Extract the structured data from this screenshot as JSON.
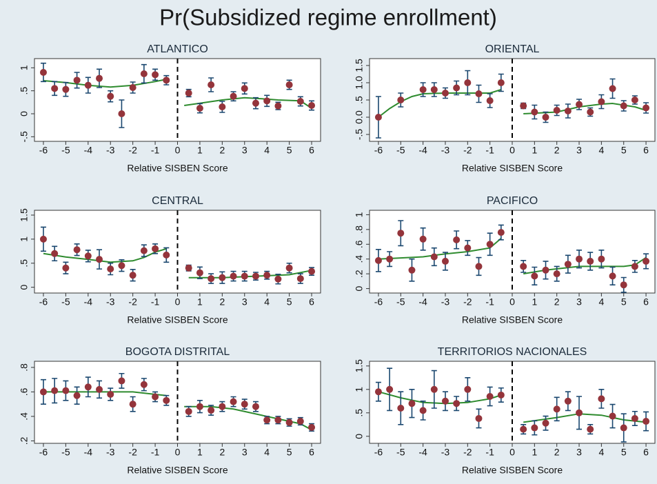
{
  "title": "Pr(Subsidized regime enrollment)",
  "chart_data": [
    {
      "type": "scatter",
      "title": "ATLANTICO",
      "x_label": "Relative SISBEN Score",
      "xlim": [
        -6.4,
        6.4
      ],
      "xticks": [
        -6,
        -5,
        -4,
        -3,
        -2,
        -1,
        0,
        1,
        2,
        3,
        4,
        5,
        6
      ],
      "ylim": [
        -0.6,
        1.2
      ],
      "yticks": [
        {
          "value": -0.5,
          "label": "-.5"
        },
        0,
        {
          "value": 0.5,
          "label": ".5"
        },
        1
      ],
      "cutoff": 0,
      "points": {
        "color": "#94343b",
        "error_color": "#1a476f",
        "x": [
          -6,
          -5.5,
          -5,
          -4.5,
          -4,
          -3.5,
          -3,
          -2.5,
          -2,
          -1.5,
          -1,
          -0.5,
          0.5,
          1,
          1.5,
          2,
          2.5,
          3,
          3.5,
          4,
          4.5,
          5,
          5.5,
          6
        ],
        "values": [
          0.9,
          0.55,
          0.53,
          0.73,
          0.62,
          0.77,
          0.38,
          0.0,
          0.57,
          0.87,
          0.85,
          0.73,
          0.45,
          0.12,
          0.63,
          0.15,
          0.38,
          0.55,
          0.23,
          0.28,
          0.17,
          0.63,
          0.27,
          0.18
        ],
        "errors": [
          0.2,
          0.15,
          0.15,
          0.17,
          0.17,
          0.2,
          0.12,
          0.3,
          0.12,
          0.2,
          0.12,
          0.1,
          0.08,
          0.1,
          0.15,
          0.12,
          0.1,
          0.12,
          0.12,
          0.12,
          0.08,
          0.1,
          0.1,
          0.1
        ]
      },
      "fit": {
        "color": "#2e8b2e",
        "x": [
          -6,
          -5,
          -4,
          -3,
          -2,
          -1,
          -0.5,
          0,
          0.3,
          1,
          2,
          3,
          4,
          4.5,
          5.5,
          6
        ],
        "values": [
          0.72,
          0.68,
          0.62,
          0.58,
          0.62,
          0.7,
          0.75,
          null,
          0.18,
          0.23,
          0.3,
          0.35,
          0.32,
          0.3,
          0.28,
          0.12
        ]
      }
    },
    {
      "type": "scatter",
      "title": "ORIENTAL",
      "x_label": "Relative SISBEN Score",
      "xlim": [
        -6.4,
        6.4
      ],
      "xticks": [
        -6,
        -5,
        -4,
        -3,
        -2,
        -1,
        0,
        1,
        2,
        3,
        4,
        5,
        6
      ],
      "ylim": [
        -0.7,
        1.7
      ],
      "yticks": [
        {
          "value": -0.5,
          "label": "-.5"
        },
        {
          "value": 0,
          "label": "0.0"
        },
        {
          "value": 0.5,
          "label": ".5"
        },
        {
          "value": 1,
          "label": "1.0"
        },
        1.5
      ],
      "cutoff": 0,
      "points": {
        "color": "#94343b",
        "error_color": "#1a476f",
        "x": [
          -6,
          -5,
          -4,
          -3.5,
          -3,
          -2.5,
          -2,
          -1.5,
          -1,
          -0.5,
          0.5,
          1,
          1.5,
          2,
          2.5,
          3,
          3.5,
          4,
          4.5,
          5,
          5.5,
          6
        ],
        "values": [
          0.0,
          0.5,
          0.8,
          0.8,
          0.7,
          0.85,
          1.0,
          0.68,
          0.48,
          1.0,
          0.33,
          0.15,
          0.0,
          0.2,
          0.18,
          0.37,
          0.15,
          0.45,
          0.83,
          0.33,
          0.5,
          0.27
        ],
        "errors": [
          0.6,
          0.2,
          0.2,
          0.2,
          0.15,
          0.2,
          0.35,
          0.25,
          0.2,
          0.25,
          0.08,
          0.2,
          0.15,
          0.15,
          0.2,
          0.15,
          0.12,
          0.2,
          0.28,
          0.15,
          0.12,
          0.15
        ]
      },
      "fit": {
        "color": "#2e8b2e",
        "x": [
          -6,
          -5.5,
          -5,
          -4.5,
          -4,
          -3,
          -2,
          -1,
          -0.5,
          0,
          0.5,
          2,
          3,
          4,
          4.5,
          5,
          5.5,
          6
        ],
        "values": [
          0.0,
          0.25,
          0.45,
          0.6,
          0.68,
          0.7,
          0.7,
          0.7,
          0.8,
          null,
          0.1,
          0.15,
          0.3,
          0.38,
          0.4,
          0.35,
          0.3,
          0.2
        ]
      }
    },
    {
      "type": "scatter",
      "title": "CENTRAL",
      "x_label": "Relative SISBEN Score",
      "xlim": [
        -6.4,
        6.4
      ],
      "xticks": [
        -6,
        -5,
        -4,
        -3,
        -2,
        -1,
        0,
        1,
        2,
        3,
        4,
        5,
        6
      ],
      "ylim": [
        -0.12,
        1.6
      ],
      "yticks": [
        0,
        {
          "value": 0.5,
          "label": ".5"
        },
        1,
        1.5
      ],
      "cutoff": 0,
      "points": {
        "color": "#94343b",
        "error_color": "#1a476f",
        "x": [
          -6,
          -5.5,
          -5,
          -4.5,
          -4,
          -3.5,
          -3,
          -2.5,
          -2,
          -1.5,
          -1,
          -0.5,
          0.5,
          1,
          1.5,
          2,
          2.5,
          3,
          3.5,
          4,
          4.5,
          5,
          5.5,
          6
        ],
        "values": [
          1.0,
          0.7,
          0.4,
          0.78,
          0.65,
          0.58,
          0.38,
          0.45,
          0.25,
          0.76,
          0.8,
          0.67,
          0.4,
          0.3,
          0.18,
          0.2,
          0.23,
          0.23,
          0.23,
          0.25,
          0.17,
          0.4,
          0.18,
          0.33
        ],
        "errors": [
          0.25,
          0.15,
          0.12,
          0.12,
          0.12,
          0.2,
          0.12,
          0.12,
          0.12,
          0.12,
          0.1,
          0.15,
          0.06,
          0.12,
          0.1,
          0.12,
          0.1,
          0.1,
          0.08,
          0.08,
          0.1,
          0.1,
          0.1,
          0.08
        ]
      },
      "fit": {
        "color": "#2e8b2e",
        "x": [
          -6,
          -5,
          -4,
          -3,
          -2,
          -1.5,
          -1,
          -0.5,
          0,
          0.5,
          2,
          4,
          5,
          6
        ],
        "values": [
          0.7,
          0.63,
          0.58,
          0.52,
          0.55,
          0.62,
          0.73,
          0.8,
          null,
          0.2,
          0.2,
          0.24,
          0.26,
          0.35
        ]
      }
    },
    {
      "type": "scatter",
      "title": "PACIFICO",
      "x_label": "Relative SISBEN Score",
      "xlim": [
        -6.4,
        6.4
      ],
      "xticks": [
        -6,
        -5,
        -4,
        -3,
        -2,
        -1,
        0,
        1,
        2,
        3,
        4,
        5,
        6
      ],
      "ylim": [
        -0.06,
        1.06
      ],
      "yticks": [
        0,
        {
          "value": 0.2,
          "label": ".2"
        },
        {
          "value": 0.4,
          "label": ".4"
        },
        {
          "value": 0.6,
          "label": ".6"
        },
        {
          "value": 0.8,
          "label": ".8"
        },
        1
      ],
      "cutoff": 0,
      "points": {
        "color": "#94343b",
        "error_color": "#1a476f",
        "x": [
          -6,
          -5.5,
          -5,
          -4.5,
          -4,
          -3.5,
          -3,
          -2.5,
          -2,
          -1.5,
          -1,
          -0.5,
          0.5,
          1,
          1.5,
          2,
          2.5,
          3,
          3.5,
          4,
          4.5,
          5,
          5.5,
          6
        ],
        "values": [
          0.38,
          0.4,
          0.75,
          0.25,
          0.67,
          0.43,
          0.37,
          0.66,
          0.55,
          0.3,
          0.6,
          0.76,
          0.3,
          0.17,
          0.25,
          0.2,
          0.33,
          0.4,
          0.37,
          0.4,
          0.17,
          0.05,
          0.3,
          0.37
        ],
        "errors": [
          0.15,
          0.1,
          0.17,
          0.15,
          0.15,
          0.12,
          0.12,
          0.12,
          0.1,
          0.12,
          0.15,
          0.1,
          0.08,
          0.12,
          0.12,
          0.1,
          0.12,
          0.12,
          0.12,
          0.12,
          0.12,
          0.1,
          0.08,
          0.1
        ]
      },
      "fit": {
        "color": "#2e8b2e",
        "x": [
          -6,
          -4,
          -3,
          -2,
          -1,
          -0.5,
          0,
          0.5,
          1.5,
          3,
          5,
          5.5,
          6
        ],
        "values": [
          0.4,
          0.43,
          0.47,
          0.5,
          0.55,
          0.68,
          null,
          0.2,
          0.25,
          0.3,
          0.3,
          0.32,
          0.42
        ]
      }
    },
    {
      "type": "scatter",
      "title": "BOGOTA DISTRITAL",
      "x_label": "Relative SISBEN Score",
      "xlim": [
        -6.4,
        6.4
      ],
      "xticks": [
        -6,
        -5,
        -4,
        -3,
        -2,
        -1,
        0,
        1,
        2,
        3,
        4,
        5,
        6
      ],
      "ylim": [
        0.18,
        0.85
      ],
      "yticks": [
        {
          "value": 0.2,
          "label": ".2"
        },
        {
          "value": 0.4,
          "label": ".4"
        },
        {
          "value": 0.6,
          "label": ".6"
        },
        {
          "value": 0.8,
          "label": ".8"
        }
      ],
      "cutoff": 0,
      "points": {
        "color": "#94343b",
        "error_color": "#1a476f",
        "x": [
          -6,
          -5.5,
          -5,
          -4.5,
          -4,
          -3.5,
          -3,
          -2.5,
          -2,
          -1.5,
          -1,
          -0.5,
          0.5,
          1,
          1.5,
          2,
          2.5,
          3,
          3.5,
          4,
          4.5,
          5,
          5.5,
          6
        ],
        "values": [
          0.6,
          0.61,
          0.61,
          0.57,
          0.64,
          0.62,
          0.58,
          0.69,
          0.5,
          0.66,
          0.56,
          0.53,
          0.44,
          0.48,
          0.45,
          0.48,
          0.52,
          0.5,
          0.48,
          0.37,
          0.37,
          0.35,
          0.36,
          0.31
        ],
        "errors": [
          0.1,
          0.1,
          0.08,
          0.07,
          0.08,
          0.07,
          0.05,
          0.06,
          0.06,
          0.05,
          0.04,
          0.04,
          0.04,
          0.05,
          0.04,
          0.04,
          0.04,
          0.04,
          0.04,
          0.03,
          0.03,
          0.03,
          0.03,
          0.03
        ]
      },
      "fit": {
        "color": "#2e8b2e",
        "x": [
          -6,
          -4,
          -2,
          -1,
          -0.5,
          0,
          0.3,
          1.5,
          2.5,
          3.5,
          4.5,
          5.5,
          6
        ],
        "values": [
          0.6,
          0.6,
          0.6,
          0.58,
          0.57,
          null,
          0.48,
          0.48,
          0.46,
          0.42,
          0.38,
          0.34,
          0.29
        ]
      }
    },
    {
      "type": "scatter",
      "title": "TERRITORIOS NACIONALES",
      "x_label": "Relative SISBEN Score",
      "xlim": [
        -6.4,
        6.4
      ],
      "xticks": [
        -6,
        -5,
        -4,
        -3,
        -2,
        -1,
        0,
        1,
        2,
        3,
        4,
        5,
        6
      ],
      "ylim": [
        -0.15,
        1.6
      ],
      "yticks": [
        0,
        {
          "value": 0.5,
          "label": ".5"
        },
        1,
        1.5
      ],
      "cutoff": 0,
      "points": {
        "color": "#94343b",
        "error_color": "#1a476f",
        "x": [
          -6,
          -5.5,
          -5,
          -4.5,
          -4,
          -3.5,
          -3,
          -2.5,
          -2,
          -1.5,
          -1,
          -0.5,
          0.5,
          1,
          1.5,
          2,
          2.5,
          3,
          3.5,
          4,
          4.5,
          5,
          5.5,
          6
        ],
        "values": [
          0.95,
          1.0,
          0.6,
          0.7,
          0.55,
          1.0,
          0.75,
          0.7,
          1.0,
          0.38,
          0.85,
          0.88,
          0.15,
          0.18,
          0.28,
          0.58,
          0.75,
          0.5,
          0.15,
          0.8,
          0.43,
          0.18,
          0.38,
          0.32
        ],
        "errors": [
          0.2,
          0.45,
          0.35,
          0.3,
          0.2,
          0.4,
          0.2,
          0.15,
          0.25,
          0.2,
          0.2,
          0.15,
          0.1,
          0.15,
          0.15,
          0.25,
          0.2,
          0.35,
          0.1,
          0.2,
          0.25,
          0.3,
          0.15,
          0.2
        ]
      },
      "fit": {
        "color": "#2e8b2e",
        "x": [
          -6,
          -5,
          -4,
          -3,
          -2,
          -1,
          -0.5,
          0,
          0.5,
          2,
          3,
          4,
          5,
          6
        ],
        "values": [
          0.95,
          0.82,
          0.72,
          0.7,
          0.72,
          0.8,
          0.88,
          null,
          0.3,
          0.4,
          0.48,
          0.45,
          0.35,
          0.3
        ]
      }
    }
  ]
}
